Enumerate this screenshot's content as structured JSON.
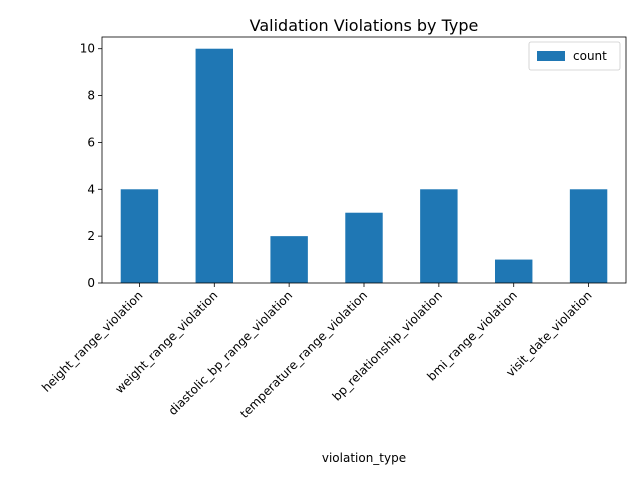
{
  "chart_data": {
    "type": "bar",
    "title": "Validation Violations by Type",
    "xlabel": "violation_type",
    "ylabel": "",
    "categories": [
      "height_range_violation",
      "weight_range_violation",
      "diastolic_bp_range_violation",
      "temperature_range_violation",
      "bp_relationship_violation",
      "bmi_range_violation",
      "visit_date_violation"
    ],
    "series": [
      {
        "name": "count",
        "values": [
          4,
          10,
          2,
          3,
          4,
          1,
          4
        ],
        "color": "#1f77b4"
      }
    ],
    "ylim": [
      0,
      10.5
    ],
    "yticks": [
      0,
      2,
      4,
      6,
      8,
      10
    ],
    "grid": false,
    "legend": "upper-right"
  }
}
